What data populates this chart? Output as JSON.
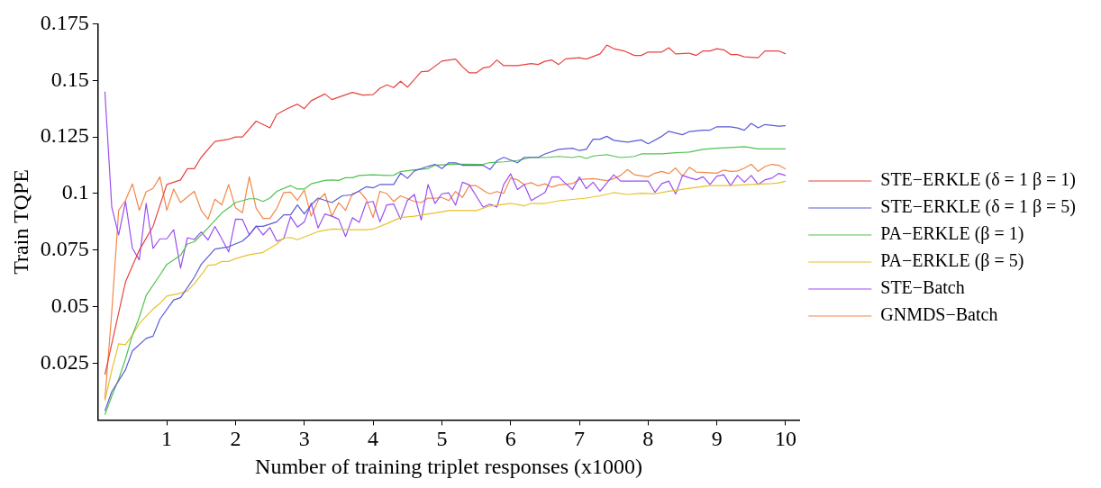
{
  "chart_data": {
    "type": "line",
    "xlabel": "Number of training triplet responses (x1000)",
    "ylabel": "Train TQPE",
    "xlim": [
      0,
      10.2
    ],
    "xticks": [
      1,
      2,
      3,
      4,
      5,
      6,
      7,
      8,
      9,
      10
    ],
    "ylim": [
      0,
      0.175
    ],
    "yticks": [
      0.025,
      0.05,
      0.075,
      0.1,
      0.125,
      0.15,
      0.175
    ],
    "grid": false,
    "legend": "right",
    "series": [
      {
        "name": "STE−ERKLE (δ = 1 β = 1)",
        "color": "#e8423f",
        "x": [
          0.1,
          0.4,
          0.6,
          0.8,
          1.0,
          1.2,
          1.3,
          1.4,
          1.5,
          1.7,
          1.9,
          2.0,
          2.1,
          2.3,
          2.5,
          2.6,
          2.75,
          2.9,
          3.0,
          3.1,
          3.3,
          3.4,
          3.7,
          3.85,
          4.0,
          4.1,
          4.2,
          4.3,
          4.4,
          4.5,
          4.7,
          4.8,
          5.0,
          5.2,
          5.3,
          5.4,
          5.5,
          5.6,
          5.7,
          5.8,
          5.9,
          6.1,
          6.3,
          6.4,
          6.5,
          6.6,
          6.7,
          6.8,
          7.0,
          7.1,
          7.3,
          7.4,
          7.5,
          7.65,
          7.8,
          7.9,
          8.0,
          8.2,
          8.3,
          8.4,
          8.6,
          8.7,
          8.8,
          8.9,
          9.0,
          9.1,
          9.2,
          9.3,
          9.4,
          9.6,
          9.7,
          9.9,
          10
        ],
        "values": [
          0.02,
          0.061,
          0.075,
          0.0855,
          0.104,
          0.106,
          0.111,
          0.111,
          0.116,
          0.123,
          0.124,
          0.125,
          0.125,
          0.132,
          0.129,
          0.135,
          0.1375,
          0.1395,
          0.1375,
          0.141,
          0.144,
          0.1415,
          0.1447,
          0.1435,
          0.1437,
          0.1465,
          0.148,
          0.1468,
          0.1496,
          0.147,
          0.1538,
          0.154,
          0.1585,
          0.1594,
          0.156,
          0.1533,
          0.1533,
          0.1555,
          0.156,
          0.159,
          0.1565,
          0.1565,
          0.1574,
          0.157,
          0.1584,
          0.159,
          0.157,
          0.1595,
          0.16,
          0.1594,
          0.1617,
          0.1656,
          0.164,
          0.163,
          0.161,
          0.161,
          0.1625,
          0.1625,
          0.1644,
          0.1617,
          0.162,
          0.161,
          0.163,
          0.163,
          0.164,
          0.1635,
          0.1614,
          0.1614,
          0.1604,
          0.16,
          0.163,
          0.163,
          0.1617
        ]
      },
      {
        "name": "STE−ERKLE (δ = 1 β = 5)",
        "color": "#5b5bd6",
        "x": [
          0.1,
          0.2,
          0.4,
          0.5,
          0.7,
          0.8,
          0.9,
          1.1,
          1.2,
          1.4,
          1.5,
          1.7,
          1.9,
          2.1,
          2.2,
          2.3,
          2.4,
          2.6,
          2.7,
          2.8,
          2.9,
          3.0,
          3.1,
          3.2,
          3.4,
          3.55,
          3.7,
          3.9,
          4.0,
          4.1,
          4.3,
          4.4,
          4.5,
          4.6,
          4.8,
          4.9,
          5.0,
          5.1,
          5.2,
          5.3,
          5.6,
          5.7,
          5.8,
          5.9,
          6.1,
          6.2,
          6.4,
          6.5,
          6.7,
          6.9,
          7.0,
          7.1,
          7.2,
          7.3,
          7.4,
          7.5,
          7.7,
          7.9,
          8.0,
          8.2,
          8.3,
          8.5,
          8.6,
          8.8,
          8.9,
          9.0,
          9.2,
          9.3,
          9.4,
          9.5,
          9.6,
          9.7,
          9.9,
          10
        ],
        "values": [
          0.004,
          0.0125,
          0.0222,
          0.0305,
          0.036,
          0.037,
          0.0445,
          0.053,
          0.054,
          0.063,
          0.0687,
          0.0755,
          0.0765,
          0.079,
          0.0817,
          0.0855,
          0.0855,
          0.0875,
          0.0906,
          0.0906,
          0.095,
          0.091,
          0.095,
          0.098,
          0.096,
          0.099,
          0.0995,
          0.103,
          0.1025,
          0.104,
          0.104,
          0.109,
          0.1067,
          0.11,
          0.112,
          0.1129,
          0.111,
          0.1136,
          0.1136,
          0.1125,
          0.1125,
          0.1106,
          0.1145,
          0.116,
          0.1136,
          0.116,
          0.116,
          0.1175,
          0.1195,
          0.12,
          0.119,
          0.1195,
          0.124,
          0.124,
          0.1253,
          0.1235,
          0.1227,
          0.1237,
          0.122,
          0.1253,
          0.1275,
          0.126,
          0.1274,
          0.128,
          0.128,
          0.1295,
          0.1295,
          0.129,
          0.128,
          0.131,
          0.129,
          0.1305,
          0.1298,
          0.13
        ]
      },
      {
        "name": "PA−ERKLE (β = 1)",
        "color": "#4ec44e",
        "x": [
          0.1,
          0.2,
          0.3,
          0.4,
          0.5,
          0.6,
          0.7,
          0.9,
          1.0,
          1.2,
          1.3,
          1.4,
          1.6,
          1.8,
          2.0,
          2.2,
          2.3,
          2.4,
          2.5,
          2.6,
          2.8,
          2.9,
          3.0,
          3.1,
          3.3,
          3.4,
          3.5,
          3.6,
          3.7,
          3.8,
          4.0,
          4.2,
          4.3,
          4.4,
          4.6,
          4.8,
          4.9,
          5.1,
          5.3,
          5.6,
          5.7,
          5.9,
          6.1,
          6.3,
          6.5,
          6.7,
          6.9,
          7.0,
          7.1,
          7.2,
          7.4,
          7.6,
          7.8,
          7.9,
          8.2,
          8.4,
          8.6,
          8.8,
          9.0,
          9.2,
          9.4,
          9.6,
          10
        ],
        "values": [
          0.0023,
          0.0105,
          0.018,
          0.027,
          0.0375,
          0.0453,
          0.055,
          0.064,
          0.0687,
          0.0727,
          0.0777,
          0.0787,
          0.0848,
          0.0914,
          0.096,
          0.0977,
          0.0977,
          0.0965,
          0.098,
          0.101,
          0.1035,
          0.102,
          0.102,
          0.1043,
          0.1058,
          0.106,
          0.1058,
          0.107,
          0.107,
          0.108,
          0.1083,
          0.108,
          0.1081,
          0.1097,
          0.1105,
          0.111,
          0.1125,
          0.1129,
          0.113,
          0.1129,
          0.1137,
          0.114,
          0.1146,
          0.116,
          0.1159,
          0.1164,
          0.1159,
          0.1165,
          0.1155,
          0.1166,
          0.1172,
          0.1159,
          0.1164,
          0.1175,
          0.1175,
          0.118,
          0.1183,
          0.1195,
          0.12,
          0.1203,
          0.1207,
          0.1197,
          0.1197
        ]
      },
      {
        "name": "PA−ERKLE (β = 5)",
        "color": "#e6c229",
        "x": [
          0.1,
          0.2,
          0.3,
          0.4,
          0.5,
          0.6,
          0.8,
          0.9,
          1.0,
          1.2,
          1.3,
          1.4,
          1.5,
          1.6,
          1.7,
          1.8,
          1.9,
          2.0,
          2.2,
          2.4,
          2.6,
          2.7,
          2.8,
          2.9,
          3.2,
          3.4,
          3.7,
          3.9,
          4.0,
          4.2,
          4.4,
          4.6,
          4.8,
          4.9,
          5.1,
          5.5,
          5.7,
          6.0,
          6.2,
          6.3,
          6.5,
          6.7,
          7.0,
          7.1,
          7.3,
          7.5,
          7.7,
          7.9,
          8.1,
          8.3,
          8.6,
          8.9,
          9.2,
          9.5,
          9.8,
          9.9,
          10
        ],
        "values": [
          0.0086,
          0.0219,
          0.0336,
          0.0332,
          0.0375,
          0.0426,
          0.049,
          0.0515,
          0.0547,
          0.056,
          0.057,
          0.0602,
          0.064,
          0.0683,
          0.0685,
          0.07,
          0.07,
          0.0713,
          0.073,
          0.074,
          0.0777,
          0.0804,
          0.0806,
          0.0796,
          0.0832,
          0.0843,
          0.084,
          0.084,
          0.0843,
          0.0867,
          0.0894,
          0.09,
          0.091,
          0.0914,
          0.0925,
          0.0925,
          0.0945,
          0.0957,
          0.0946,
          0.0957,
          0.0956,
          0.0968,
          0.0977,
          0.098,
          0.099,
          0.1004,
          0.0996,
          0.1001,
          0.0999,
          0.101,
          0.1023,
          0.1035,
          0.1035,
          0.104,
          0.1044,
          0.1047,
          0.1055
        ]
      },
      {
        "name": "STE−Batch",
        "color": "#9b4ff0",
        "x": [
          0.1,
          0.2,
          0.3,
          0.4,
          0.5,
          0.6,
          0.7,
          0.8,
          0.9,
          1.0,
          1.1,
          1.2,
          1.3,
          1.4,
          1.5,
          1.6,
          1.7,
          1.8,
          1.9,
          2.0,
          2.1,
          2.2,
          2.3,
          2.4,
          2.5,
          2.6,
          2.7,
          2.8,
          2.9,
          3.0,
          3.1,
          3.2,
          3.3,
          3.4,
          3.5,
          3.6,
          3.7,
          3.8,
          3.9,
          4.0,
          4.1,
          4.2,
          4.3,
          4.4,
          4.5,
          4.6,
          4.7,
          4.8,
          4.9,
          5.0,
          5.1,
          5.2,
          5.3,
          5.4,
          5.6,
          5.7,
          5.8,
          5.9,
          6.0,
          6.1,
          6.2,
          6.3,
          6.5,
          6.6,
          6.7,
          6.8,
          6.9,
          7.0,
          7.1,
          7.2,
          7.3,
          7.5,
          7.6,
          8.0,
          8.1,
          8.2,
          8.3,
          8.4,
          8.5,
          8.6,
          8.7,
          8.8,
          8.9,
          9.0,
          9.1,
          9.2,
          9.3,
          9.4,
          9.5,
          9.6,
          9.7,
          9.8,
          9.9,
          10
        ],
        "values": [
          0.145,
          0.094,
          0.0817,
          0.0965,
          0.0758,
          0.0707,
          0.0957,
          0.0758,
          0.08,
          0.08,
          0.084,
          0.067,
          0.0805,
          0.0797,
          0.083,
          0.0795,
          0.0855,
          0.08,
          0.0742,
          0.0887,
          0.0886,
          0.0817,
          0.0857,
          0.0817,
          0.085,
          0.079,
          0.08,
          0.0898,
          0.0852,
          0.0875,
          0.0957,
          0.0848,
          0.091,
          0.09,
          0.0887,
          0.081,
          0.0893,
          0.0873,
          0.096,
          0.0965,
          0.0875,
          0.095,
          0.0954,
          0.0887,
          0.097,
          0.0996,
          0.0883,
          0.104,
          0.0956,
          0.0999,
          0.1003,
          0.0949,
          0.105,
          0.1038,
          0.094,
          0.0953,
          0.094,
          0.104,
          0.1087,
          0.1018,
          0.104,
          0.0969,
          0.1005,
          0.1073,
          0.1074,
          0.1044,
          0.1018,
          0.1073,
          0.1022,
          0.105,
          0.101,
          0.1083,
          0.1055,
          0.1055,
          0.1005,
          0.1044,
          0.1055,
          0.0998,
          0.108,
          0.107,
          0.1061,
          0.1074,
          0.104,
          0.1077,
          0.1083,
          0.1035,
          0.108,
          0.105,
          0.108,
          0.104,
          0.1061,
          0.1068,
          0.1089,
          0.108
        ]
      },
      {
        "name": "GNMDS−Batch",
        "color": "#f0884a",
        "x": [
          0.1,
          0.2,
          0.3,
          0.4,
          0.5,
          0.6,
          0.7,
          0.8,
          0.9,
          1.0,
          1.1,
          1.2,
          1.4,
          1.5,
          1.6,
          1.7,
          1.8,
          1.9,
          2.0,
          2.1,
          2.2,
          2.3,
          2.4,
          2.5,
          2.6,
          2.7,
          2.8,
          2.9,
          3.0,
          3.1,
          3.2,
          3.3,
          3.4,
          3.5,
          3.6,
          3.7,
          3.8,
          3.9,
          4.0,
          4.1,
          4.2,
          4.3,
          4.4,
          4.6,
          4.7,
          4.8,
          4.9,
          5.0,
          5.1,
          5.2,
          5.3,
          5.4,
          5.5,
          5.65,
          5.7,
          5.8,
          5.9,
          6.0,
          6.1,
          6.2,
          6.3,
          6.4,
          6.5,
          6.6,
          6.7,
          6.9,
          7.0,
          7.2,
          7.4,
          7.5,
          7.6,
          7.7,
          7.8,
          8.0,
          8.1,
          8.2,
          8.3,
          8.4,
          8.5,
          8.6,
          8.7,
          8.9,
          9.0,
          9.1,
          9.2,
          9.3,
          9.4,
          9.5,
          9.6,
          9.7,
          9.8,
          9.9,
          10
        ],
        "values": [
          0.009,
          0.0478,
          0.0926,
          0.097,
          0.1043,
          0.0926,
          0.1008,
          0.1023,
          0.1074,
          0.0926,
          0.102,
          0.096,
          0.101,
          0.0926,
          0.0887,
          0.0975,
          0.095,
          0.104,
          0.0937,
          0.0915,
          0.1074,
          0.0935,
          0.089,
          0.089,
          0.0935,
          0.1004,
          0.1006,
          0.097,
          0.1015,
          0.09,
          0.097,
          0.1,
          0.09,
          0.096,
          0.0926,
          0.1,
          0.101,
          0.0975,
          0.0894,
          0.101,
          0.1,
          0.0965,
          0.099,
          0.0965,
          0.096,
          0.098,
          0.0979,
          0.0983,
          0.0969,
          0.1009,
          0.0983,
          0.1035,
          0.1035,
          0.1005,
          0.0999,
          0.1009,
          0.1001,
          0.1068,
          0.1061,
          0.104,
          0.1048,
          0.1034,
          0.1043,
          0.1028,
          0.1038,
          0.1044,
          0.1062,
          0.1066,
          0.1057,
          0.1066,
          0.108,
          0.1106,
          0.1083,
          0.1074,
          0.109,
          0.1098,
          0.1088,
          0.1113,
          0.1077,
          0.1116,
          0.1095,
          0.1092,
          0.109,
          0.1104,
          0.1098,
          0.11,
          0.1112,
          0.1129,
          0.1098,
          0.1119,
          0.1129,
          0.1125,
          0.1108
        ]
      }
    ]
  }
}
